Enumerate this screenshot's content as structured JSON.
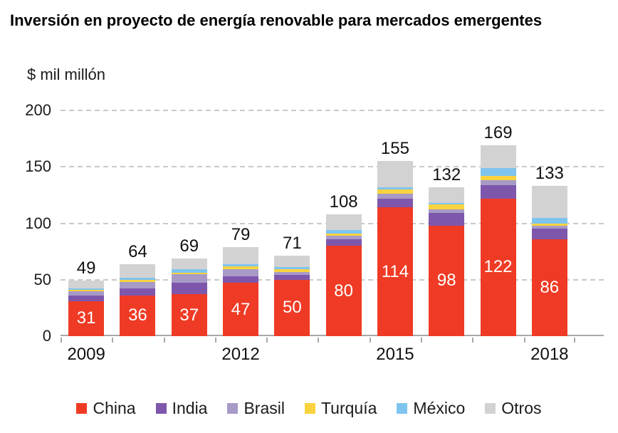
{
  "chart_data": {
    "type": "bar",
    "stacked": true,
    "title": "Inversión en proyecto de energía renovable para mercados emergentes",
    "unit_label": "$ mil millón",
    "xlabel": "",
    "ylabel": "$ mil millón",
    "ylim": [
      0,
      200
    ],
    "yticks": [
      0,
      50,
      100,
      150,
      200
    ],
    "grid": "dashed-horizontal",
    "legend_position": "bottom",
    "x": [
      "2009",
      "2010",
      "2011",
      "2012",
      "2013",
      "2014",
      "2015",
      "2016",
      "2017",
      "2018"
    ],
    "x_shown": [
      "2009",
      "2012",
      "2015",
      "2018"
    ],
    "totals": [
      49,
      64,
      69,
      79,
      71,
      108,
      155,
      132,
      169,
      133
    ],
    "series": [
      {
        "name": "China",
        "key": "china",
        "color": "#EF3B25",
        "labeled": true,
        "values": [
          31,
          36,
          37,
          47,
          50,
          80,
          114,
          98,
          122,
          86
        ]
      },
      {
        "name": "India",
        "key": "india",
        "color": "#7E57AC",
        "values": [
          5,
          6,
          10,
          6,
          4,
          6,
          8,
          11,
          12,
          9
        ]
      },
      {
        "name": "Brasil",
        "key": "brasil",
        "color": "#A79AC7",
        "values": [
          4,
          6,
          8,
          6,
          3,
          3,
          4,
          3,
          4,
          3
        ]
      },
      {
        "name": "Turquía",
        "key": "turquia",
        "color": "#F9D33F",
        "values": [
          1,
          2,
          1,
          3,
          2,
          2,
          4,
          5,
          4,
          2
        ]
      },
      {
        "name": "México",
        "key": "mexico",
        "color": "#7EC4EF",
        "values": [
          1,
          2,
          3,
          2,
          2,
          3,
          2,
          1,
          7,
          5
        ]
      },
      {
        "name": "Otros",
        "key": "otros",
        "color": "#D3D2D2",
        "values": [
          7,
          12,
          10,
          15,
          10,
          14,
          23,
          14,
          20,
          28
        ]
      }
    ]
  }
}
